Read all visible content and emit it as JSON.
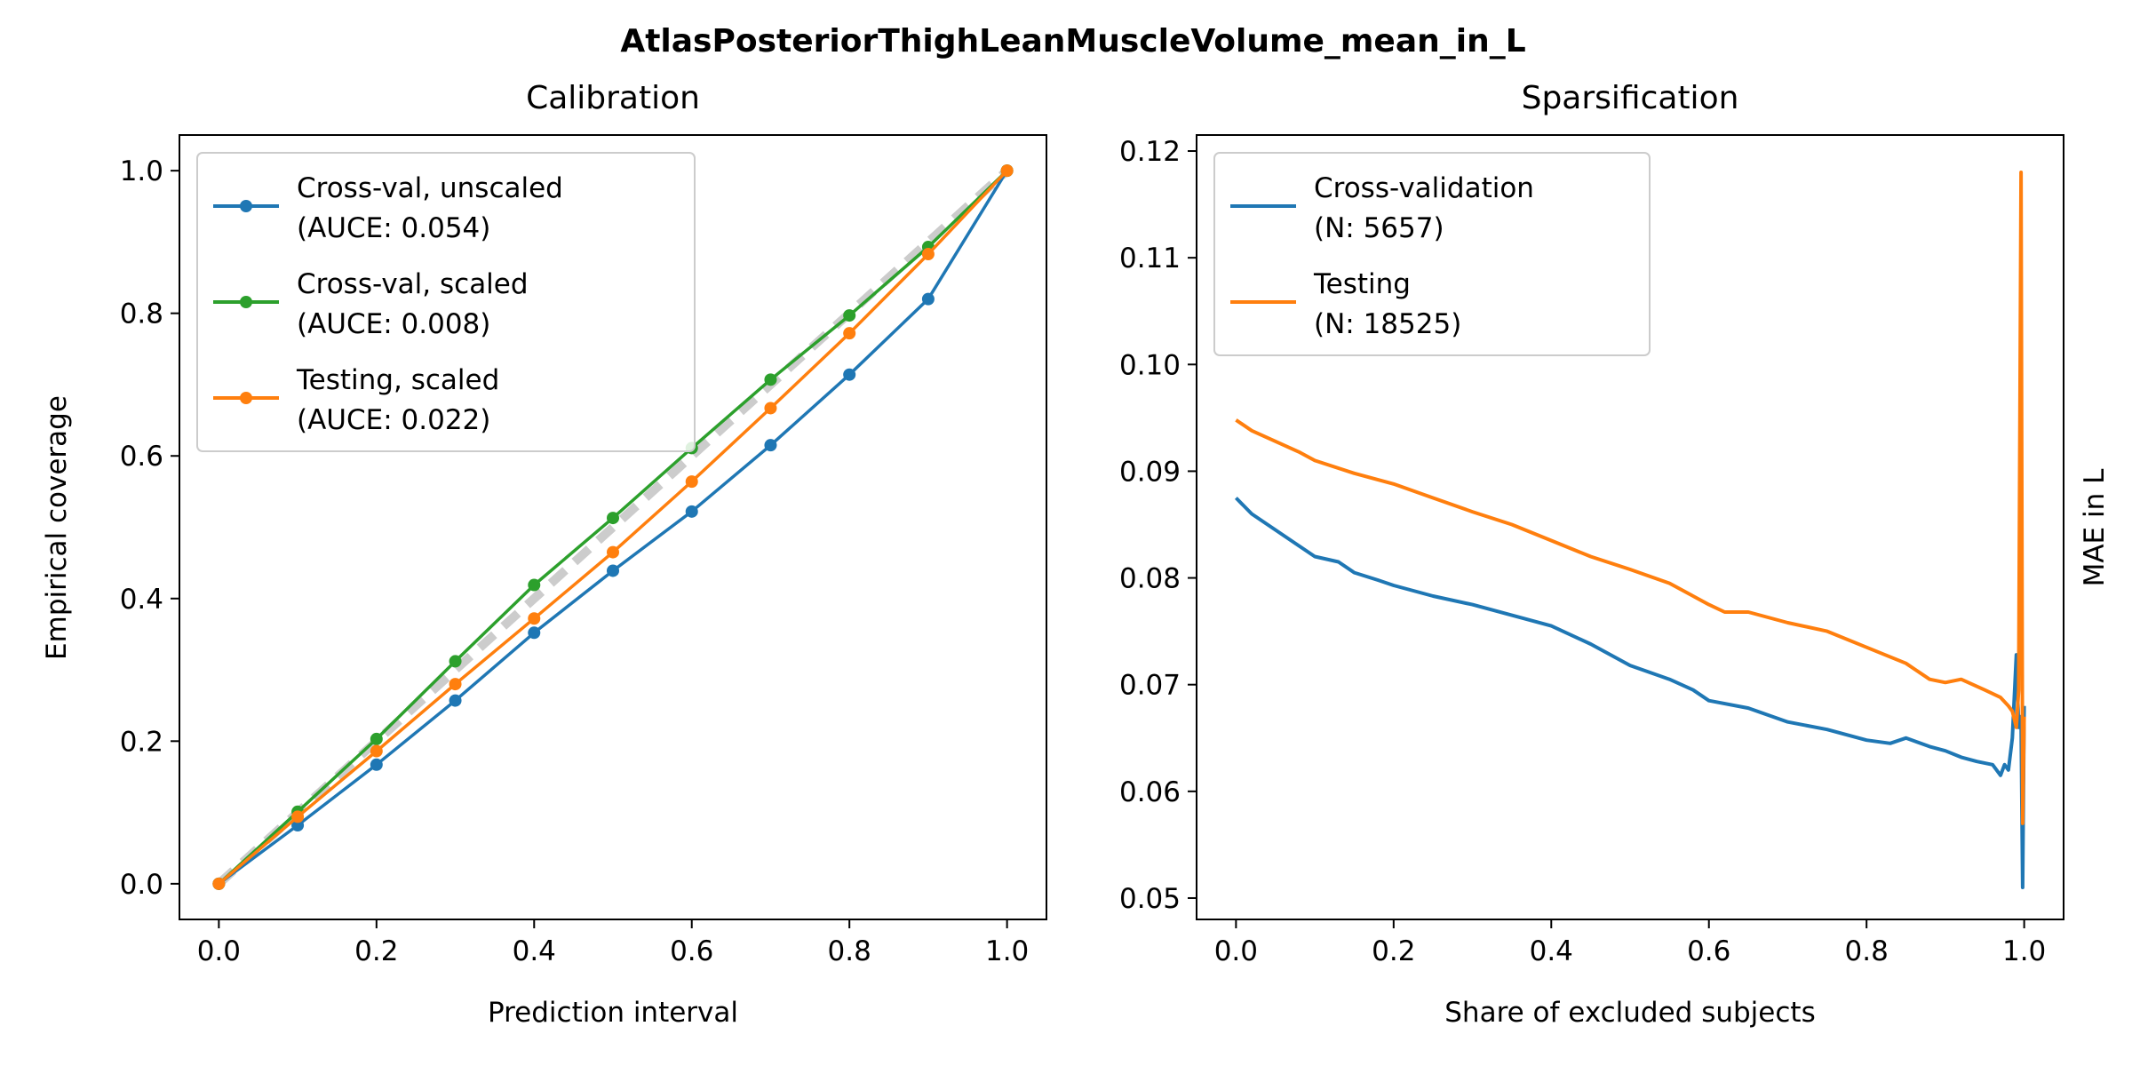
{
  "figure": {
    "suptitle": "AtlasPosteriorThighLeanMuscleVolume_mean_in_L"
  },
  "chart_data": [
    {
      "type": "line",
      "title": "Calibration",
      "xlabel": "Prediction interval",
      "ylabel": "Empirical coverage",
      "xlim": [
        -0.05,
        1.05
      ],
      "ylim": [
        -0.05,
        1.05
      ],
      "xticks": [
        0.0,
        0.2,
        0.4,
        0.6,
        0.8,
        1.0
      ],
      "xtick_labels": [
        "0.0",
        "0.2",
        "0.4",
        "0.6",
        "0.8",
        "1.0"
      ],
      "yticks": [
        0.0,
        0.2,
        0.4,
        0.6,
        0.8,
        1.0
      ],
      "ytick_labels": [
        "0.0",
        "0.2",
        "0.4",
        "0.6",
        "0.8",
        "1.0"
      ],
      "grid": false,
      "legend_position": "upper-left",
      "reference_line": {
        "x": [
          0,
          1
        ],
        "y": [
          0,
          1
        ],
        "color": "#cccccc",
        "style": "dashed"
      },
      "x": [
        0.0,
        0.1,
        0.2,
        0.3,
        0.4,
        0.5,
        0.6,
        0.7,
        0.8,
        0.9,
        1.0
      ],
      "series": [
        {
          "name": "Cross-val, unscaled",
          "stat": "(AUCE: 0.054)",
          "color": "#1f77b4",
          "marker": true,
          "values": [
            0.0,
            0.082,
            0.167,
            0.257,
            0.352,
            0.439,
            0.522,
            0.615,
            0.714,
            0.82,
            1.0
          ]
        },
        {
          "name": "Cross-val, scaled",
          "stat": "(AUCE: 0.008)",
          "color": "#2ca02c",
          "marker": true,
          "values": [
            0.0,
            0.101,
            0.203,
            0.312,
            0.419,
            0.513,
            0.611,
            0.707,
            0.797,
            0.893,
            1.0
          ]
        },
        {
          "name": "Testing, scaled",
          "stat": "(AUCE: 0.022)",
          "color": "#ff7f0e",
          "marker": true,
          "values": [
            0.0,
            0.094,
            0.186,
            0.28,
            0.372,
            0.465,
            0.564,
            0.667,
            0.772,
            0.883,
            1.0
          ]
        }
      ]
    },
    {
      "type": "line",
      "title": "Sparsification",
      "xlabel": "Share of excluded subjects",
      "ylabel": "MAE in L",
      "ylabel_side": "right",
      "xlim": [
        -0.05,
        1.05
      ],
      "ylim": [
        0.048,
        0.1215
      ],
      "xticks": [
        0.0,
        0.2,
        0.4,
        0.6,
        0.8,
        1.0
      ],
      "xtick_labels": [
        "0.0",
        "0.2",
        "0.4",
        "0.6",
        "0.8",
        "1.0"
      ],
      "yticks": [
        0.05,
        0.06,
        0.07,
        0.08,
        0.09,
        0.1,
        0.11,
        0.12
      ],
      "ytick_labels": [
        "0.05",
        "0.06",
        "0.07",
        "0.08",
        "0.09",
        "0.10",
        "0.11",
        "0.12"
      ],
      "grid": false,
      "legend_position": "upper-left",
      "series": [
        {
          "name": "Cross-validation",
          "stat": "(N: 5657)",
          "color": "#1f77b4",
          "marker": false,
          "x": [
            0.0,
            0.02,
            0.05,
            0.08,
            0.1,
            0.13,
            0.15,
            0.18,
            0.2,
            0.25,
            0.3,
            0.35,
            0.4,
            0.45,
            0.5,
            0.55,
            0.58,
            0.6,
            0.65,
            0.7,
            0.75,
            0.8,
            0.83,
            0.85,
            0.88,
            0.9,
            0.92,
            0.94,
            0.96,
            0.97,
            0.975,
            0.98,
            0.985,
            0.99,
            0.993,
            0.996,
            0.998,
            1.0
          ],
          "values": [
            0.0875,
            0.086,
            0.0845,
            0.083,
            0.082,
            0.0815,
            0.0805,
            0.0798,
            0.0793,
            0.0783,
            0.0775,
            0.0765,
            0.0755,
            0.0738,
            0.0718,
            0.0705,
            0.0695,
            0.0685,
            0.0678,
            0.0665,
            0.0658,
            0.0648,
            0.0645,
            0.065,
            0.0642,
            0.0638,
            0.0632,
            0.0628,
            0.0625,
            0.0615,
            0.0625,
            0.062,
            0.065,
            0.0728,
            0.066,
            0.067,
            0.051,
            0.068
          ]
        },
        {
          "name": "Testing",
          "stat": "(N: 18525)",
          "color": "#ff7f0e",
          "marker": false,
          "x": [
            0.0,
            0.02,
            0.05,
            0.08,
            0.1,
            0.15,
            0.2,
            0.25,
            0.3,
            0.35,
            0.4,
            0.45,
            0.5,
            0.55,
            0.6,
            0.62,
            0.65,
            0.7,
            0.75,
            0.8,
            0.85,
            0.88,
            0.9,
            0.92,
            0.95,
            0.97,
            0.98,
            0.985,
            0.99,
            0.993,
            0.996,
            0.998,
            1.0
          ],
          "values": [
            0.0948,
            0.0938,
            0.0928,
            0.0918,
            0.091,
            0.0898,
            0.0888,
            0.0875,
            0.0862,
            0.085,
            0.0835,
            0.082,
            0.0808,
            0.0795,
            0.0775,
            0.0768,
            0.0768,
            0.0758,
            0.075,
            0.0735,
            0.072,
            0.0705,
            0.0702,
            0.0705,
            0.0695,
            0.0688,
            0.068,
            0.0675,
            0.066,
            0.0695,
            0.118,
            0.057,
            0.067
          ]
        }
      ]
    }
  ]
}
